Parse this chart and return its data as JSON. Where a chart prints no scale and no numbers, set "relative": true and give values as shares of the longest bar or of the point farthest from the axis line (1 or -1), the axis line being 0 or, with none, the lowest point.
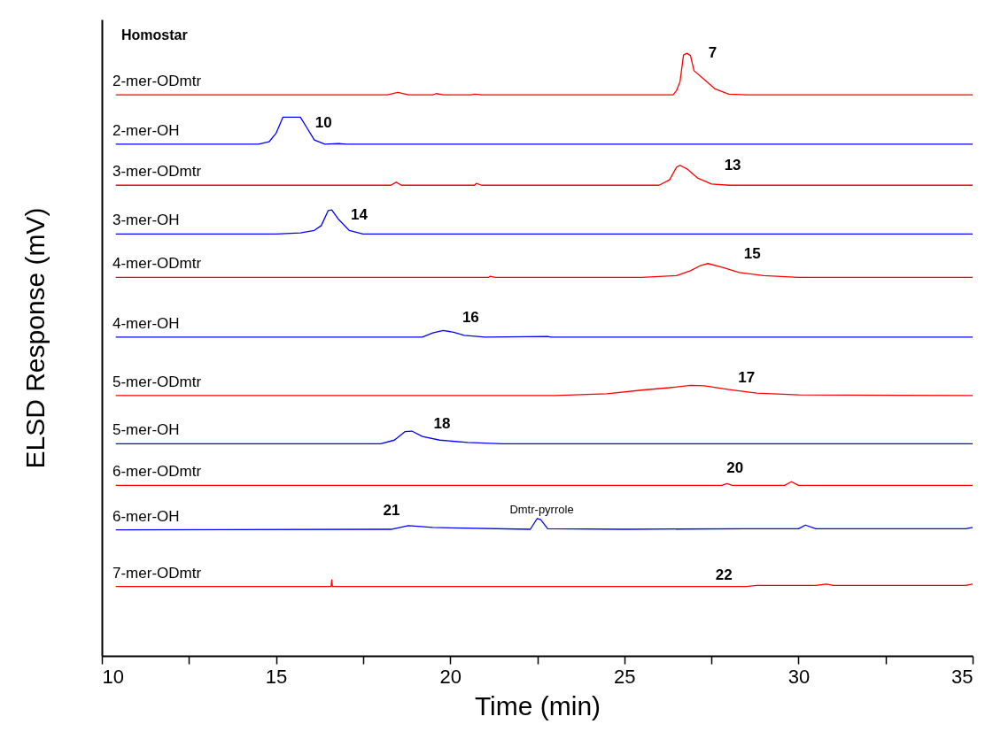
{
  "chart_data": {
    "type": "line",
    "relative": true,
    "xlabel": "Time (min)",
    "ylabel": "ELSD Response (mV)",
    "xlim": [
      10,
      35
    ],
    "xticks": [
      10,
      {
        "value": 12.5,
        "label": null
      },
      15,
      {
        "value": 17.5,
        "label": null
      },
      20,
      {
        "value": 22.5,
        "label": null
      },
      25,
      {
        "value": 27.5,
        "label": null
      },
      30,
      {
        "value": 32.5,
        "label": null
      },
      35
    ],
    "grid": false,
    "legend": false,
    "marker": "none",
    "line_style": "solid",
    "series": [
      {
        "name": "2-mer-ODmtr",
        "color": "#ff0000",
        "x": [
          10.4,
          18.2,
          18.5,
          18.8,
          19.5,
          19.6,
          19.8,
          20.6,
          20.7,
          20.9,
          26.4,
          26.5,
          26.6,
          26.7,
          26.8,
          26.9,
          27.0,
          27.3,
          27.6,
          28.0,
          28.5,
          35
        ],
        "values": [
          0.931,
          0.931,
          0.935,
          0.931,
          0.931,
          0.933,
          0.931,
          0.931,
          0.932,
          0.931,
          0.931,
          0.938,
          0.953,
          0.997,
          1.0,
          0.996,
          0.971,
          0.956,
          0.941,
          0.932,
          0.931,
          0.931
        ]
      },
      {
        "name": "2-mer-OH",
        "color": "#0000ff",
        "x": [
          10.4,
          14.5,
          14.8,
          15.0,
          15.2,
          15.7,
          15.9,
          16.1,
          16.4,
          16.8,
          17.0,
          35
        ],
        "values": [
          0.849,
          0.849,
          0.853,
          0.867,
          0.894,
          0.894,
          0.875,
          0.856,
          0.849,
          0.85,
          0.849,
          0.849
        ]
      },
      {
        "name": "3-mer-ODmtr",
        "color": "#ff0000",
        "x": [
          10.4,
          18.3,
          18.45,
          18.6,
          20.7,
          20.75,
          20.9,
          26.0,
          26.3,
          26.5,
          26.6,
          26.8,
          27.1,
          27.5,
          28,
          35
        ],
        "values": [
          0.781,
          0.781,
          0.786,
          0.781,
          0.781,
          0.784,
          0.781,
          0.781,
          0.79,
          0.811,
          0.814,
          0.808,
          0.793,
          0.783,
          0.781,
          0.781
        ]
      },
      {
        "name": "3-mer-OH",
        "color": "#0000ff",
        "x": [
          10.4,
          15.0,
          15.7,
          16.1,
          16.3,
          16.5,
          16.6,
          16.8,
          17.1,
          17.5,
          35
        ],
        "values": [
          0.7,
          0.7,
          0.702,
          0.706,
          0.714,
          0.739,
          0.74,
          0.724,
          0.706,
          0.7,
          0.7
        ]
      },
      {
        "name": "4-mer-ODmtr",
        "color": "#ff0000",
        "x": [
          10.4,
          21.1,
          21.15,
          21.3,
          25.5,
          26.5,
          26.9,
          27.2,
          27.4,
          27.8,
          28.3,
          29.0,
          30,
          35
        ],
        "values": [
          0.628,
          0.628,
          0.63,
          0.628,
          0.628,
          0.631,
          0.639,
          0.648,
          0.651,
          0.645,
          0.636,
          0.631,
          0.628,
          0.628
        ]
      },
      {
        "name": "4-mer-OH",
        "color": "#0000ff",
        "x": [
          10.4,
          19.2,
          19.5,
          19.8,
          20.1,
          20.4,
          21,
          22.8,
          22.9,
          35
        ],
        "values": [
          0.529,
          0.529,
          0.536,
          0.54,
          0.537,
          0.532,
          0.529,
          0.53,
          0.529,
          0.529
        ]
      },
      {
        "name": "5-mer-ODmtr",
        "color": "#ff0000",
        "x": [
          10.4,
          17.8,
          23,
          24.5,
          25.5,
          26.3,
          26.9,
          27.3,
          28.0,
          28.8,
          30,
          35
        ],
        "values": [
          0.432,
          0.432,
          0.432,
          0.435,
          0.441,
          0.445,
          0.449,
          0.448,
          0.442,
          0.436,
          0.433,
          0.432
        ]
      },
      {
        "name": "5-mer-OH",
        "color": "#0000ff",
        "x": [
          10.4,
          18.0,
          18.4,
          18.7,
          18.9,
          19.2,
          19.7,
          20.5,
          21.5,
          35
        ],
        "values": [
          0.352,
          0.352,
          0.358,
          0.372,
          0.373,
          0.364,
          0.358,
          0.354,
          0.352,
          0.352
        ]
      },
      {
        "name": "6-mer-ODmtr",
        "color": "#ff0000",
        "x": [
          10.4,
          27.8,
          27.95,
          28.1,
          29.6,
          29.8,
          30.0,
          35
        ],
        "values": [
          0.283,
          0.283,
          0.286,
          0.283,
          0.283,
          0.289,
          0.283,
          0.283
        ]
      },
      {
        "name": "6-mer-OH",
        "color": "#0000ff",
        "x": [
          10.4,
          18.3,
          18.8,
          19.5,
          22.3,
          22.5,
          22.6,
          22.8,
          25,
          28.5,
          30.0,
          30.2,
          30.5,
          34.8,
          35
        ],
        "values": [
          0.209,
          0.21,
          0.216,
          0.213,
          0.21,
          0.228,
          0.226,
          0.211,
          0.21,
          0.211,
          0.211,
          0.217,
          0.211,
          0.211,
          0.213
        ]
      },
      {
        "name": "7-mer-ODmtr",
        "color": "#ff0000",
        "x": [
          10.4,
          16.58,
          16.6,
          16.62,
          28.5,
          28.8,
          30.5,
          30.8,
          31,
          34.8,
          35
        ],
        "values": [
          0.115,
          0.115,
          0.126,
          0.115,
          0.115,
          0.117,
          0.117,
          0.119,
          0.117,
          0.117,
          0.119
        ]
      }
    ],
    "annotations": [
      "Homostar",
      {
        "text": "7",
        "x": 26.8,
        "y": 1.0
      },
      {
        "text": "10",
        "x": 15.7,
        "y": 0.894
      },
      {
        "text": "13",
        "x": 27.5,
        "y": 0.783
      },
      {
        "text": "14",
        "x": 16.6,
        "y": 0.74
      },
      {
        "text": "15",
        "x": 27.4,
        "y": 0.651
      },
      {
        "text": "16",
        "x": 19.8,
        "y": 0.54
      },
      {
        "text": "17",
        "x": 28.0,
        "y": 0.442
      },
      {
        "text": "18",
        "x": 18.9,
        "y": 0.373
      },
      {
        "text": "20",
        "x": 27.95,
        "y": 0.286
      },
      {
        "text": "21",
        "x": 18.8,
        "y": 0.216
      },
      {
        "text": "Dmtr-pyrrole",
        "x": 22.5,
        "y": 0.228
      },
      {
        "text": "22",
        "x": 28.8,
        "y": 0.117
      }
    ]
  }
}
